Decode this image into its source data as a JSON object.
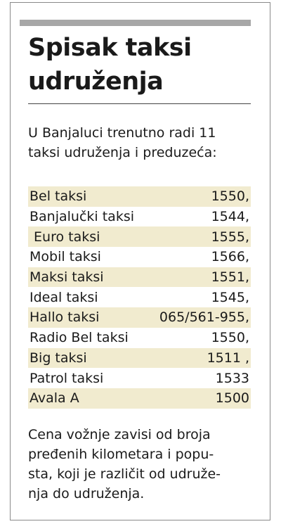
{
  "article": {
    "title_line1": "Spisak taksi",
    "title_line2": "udruženja",
    "intro_line1": "U Banjaluci trenutno radi 11",
    "intro_line2": "taksi udruženja i preduzeća:",
    "highlight_color": "#f1ebcf",
    "bar_color": "#a7a7a7",
    "taxis": [
      {
        "name": "Bel taksi",
        "number": "1550,",
        "highlight": true
      },
      {
        "name": "Banjalučki taksi",
        "number": "1544,",
        "highlight": false
      },
      {
        "name": " Euro taksi",
        "number": "1555,",
        "highlight": true
      },
      {
        "name": "Mobil taksi",
        "number": "1566,",
        "highlight": false
      },
      {
        "name": "Maksi taksi",
        "number": "1551,",
        "highlight": true
      },
      {
        "name": "Ideal taksi",
        "number": "1545,",
        "highlight": false
      },
      {
        "name": "Hallo taksi",
        "number": "065/561-955,",
        "highlight": true
      },
      {
        "name": "Radio Bel taksi",
        "number": "1550,",
        "highlight": false
      },
      {
        "name": "Big taksi",
        "number": "1511 ,",
        "highlight": true
      },
      {
        "name": "Patrol taksi",
        "number": "1533",
        "highlight": false
      },
      {
        "name": "Avala A",
        "number": "1500",
        "highlight": true
      }
    ],
    "footer_line1": "Cena vožnje zavisi od broja",
    "footer_line2": "pređenih kilometara i popu-",
    "footer_line3": "sta, koji je različit od udruže-",
    "footer_line4": "nja do udruženja."
  }
}
